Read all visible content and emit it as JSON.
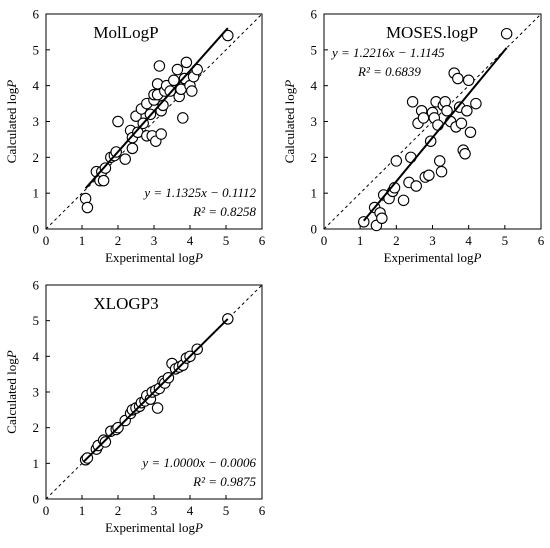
{
  "chart_data": [
    {
      "type": "scatter",
      "title": "MolLogP",
      "xlabel": "Experimental logP",
      "ylabel": "Calculated logP",
      "xlim": [
        0,
        6
      ],
      "ylim": [
        0,
        6
      ],
      "xticks": [
        "0",
        "1",
        "2",
        "3",
        "4",
        "5",
        "6"
      ],
      "yticks": [
        "0",
        "1",
        "2",
        "3",
        "4",
        "5",
        "6"
      ],
      "equation": "y = 1.1325x − 0.1112",
      "r2": "R² = 0.8258",
      "annotation_position": "bottom-right",
      "fit": {
        "slope": 1.1325,
        "intercept": -0.1112,
        "x_range": [
          1.1,
          5.05
        ]
      },
      "identity_line": true,
      "points": [
        [
          1.1,
          0.85
        ],
        [
          1.15,
          0.6
        ],
        [
          1.4,
          1.6
        ],
        [
          1.5,
          1.35
        ],
        [
          1.55,
          1.6
        ],
        [
          1.6,
          1.35
        ],
        [
          1.65,
          1.7
        ],
        [
          1.8,
          2.0
        ],
        [
          1.9,
          2.05
        ],
        [
          1.95,
          2.15
        ],
        [
          2.0,
          3.0
        ],
        [
          2.2,
          1.95
        ],
        [
          2.35,
          2.75
        ],
        [
          2.4,
          2.25
        ],
        [
          2.4,
          2.55
        ],
        [
          2.5,
          3.15
        ],
        [
          2.55,
          2.7
        ],
        [
          2.65,
          3.35
        ],
        [
          2.7,
          2.95
        ],
        [
          2.8,
          3.5
        ],
        [
          2.8,
          2.6
        ],
        [
          2.9,
          3.2
        ],
        [
          2.95,
          2.6
        ],
        [
          3.0,
          3.6
        ],
        [
          3.0,
          3.75
        ],
        [
          3.05,
          2.45
        ],
        [
          3.1,
          4.05
        ],
        [
          3.1,
          3.75
        ],
        [
          3.15,
          4.55
        ],
        [
          3.2,
          2.65
        ],
        [
          3.2,
          3.3
        ],
        [
          3.25,
          3.45
        ],
        [
          3.3,
          3.85
        ],
        [
          3.35,
          4.0
        ],
        [
          3.45,
          3.85
        ],
        [
          3.55,
          4.15
        ],
        [
          3.65,
          4.45
        ],
        [
          3.7,
          3.7
        ],
        [
          3.75,
          3.9
        ],
        [
          3.8,
          3.1
        ],
        [
          3.85,
          4.2
        ],
        [
          3.9,
          4.65
        ],
        [
          4.0,
          4.0
        ],
        [
          4.05,
          3.85
        ],
        [
          4.1,
          4.25
        ],
        [
          4.2,
          4.45
        ],
        [
          5.05,
          5.4
        ]
      ]
    },
    {
      "type": "scatter",
      "title": "MOSES.logP",
      "xlabel": "Experimental logP",
      "ylabel": "Calculated logP",
      "xlim": [
        0,
        6
      ],
      "ylim": [
        0,
        6
      ],
      "xticks": [
        "0",
        "1",
        "2",
        "3",
        "4",
        "5",
        "6"
      ],
      "yticks": [
        "0",
        "1",
        "2",
        "3",
        "4",
        "5",
        "6"
      ],
      "equation": "y = 1.2216x − 1.1145",
      "r2": "R² = 0.6839",
      "annotation_position": "top-left",
      "fit": {
        "slope": 1.2216,
        "intercept": -1.1145,
        "x_range": [
          1.1,
          5.05
        ]
      },
      "identity_line": true,
      "points": [
        [
          1.1,
          0.2
        ],
        [
          1.4,
          0.6
        ],
        [
          1.45,
          0.1
        ],
        [
          1.55,
          0.45
        ],
        [
          1.6,
          0.3
        ],
        [
          1.65,
          0.95
        ],
        [
          1.8,
          0.85
        ],
        [
          1.9,
          1.05
        ],
        [
          1.95,
          1.15
        ],
        [
          2.0,
          1.9
        ],
        [
          2.2,
          0.8
        ],
        [
          2.35,
          1.3
        ],
        [
          2.4,
          2.0
        ],
        [
          2.45,
          3.55
        ],
        [
          2.55,
          1.2
        ],
        [
          2.6,
          2.95
        ],
        [
          2.7,
          3.3
        ],
        [
          2.75,
          3.1
        ],
        [
          2.8,
          1.45
        ],
        [
          2.9,
          1.5
        ],
        [
          2.95,
          2.45
        ],
        [
          3.0,
          3.25
        ],
        [
          3.05,
          3.1
        ],
        [
          3.1,
          3.55
        ],
        [
          3.15,
          2.9
        ],
        [
          3.2,
          1.9
        ],
        [
          3.25,
          1.6
        ],
        [
          3.3,
          3.45
        ],
        [
          3.35,
          3.55
        ],
        [
          3.4,
          3.3
        ],
        [
          3.5,
          3.0
        ],
        [
          3.6,
          4.35
        ],
        [
          3.65,
          2.85
        ],
        [
          3.7,
          4.2
        ],
        [
          3.75,
          3.4
        ],
        [
          3.8,
          2.95
        ],
        [
          3.85,
          2.2
        ],
        [
          3.9,
          2.1
        ],
        [
          3.95,
          3.3
        ],
        [
          4.0,
          4.15
        ],
        [
          4.05,
          2.7
        ],
        [
          4.2,
          3.5
        ],
        [
          5.05,
          5.45
        ]
      ]
    },
    {
      "type": "scatter",
      "title": "XLOGP3",
      "xlabel": "Experimental logP",
      "ylabel": "Calculated logP",
      "xlim": [
        0,
        6
      ],
      "ylim": [
        0,
        6
      ],
      "xticks": [
        "0",
        "1",
        "2",
        "3",
        "4",
        "5",
        "6"
      ],
      "yticks": [
        "0",
        "1",
        "2",
        "3",
        "4",
        "5",
        "6"
      ],
      "equation": "y = 1.0000x − 0.0006",
      "r2": "R² = 0.9875",
      "annotation_position": "bottom-right",
      "fit": {
        "slope": 1.0,
        "intercept": -0.0006,
        "x_range": [
          1.05,
          5.05
        ]
      },
      "identity_line": true,
      "points": [
        [
          1.1,
          1.1
        ],
        [
          1.15,
          1.15
        ],
        [
          1.4,
          1.4
        ],
        [
          1.45,
          1.5
        ],
        [
          1.6,
          1.65
        ],
        [
          1.65,
          1.6
        ],
        [
          1.8,
          1.9
        ],
        [
          1.95,
          1.95
        ],
        [
          2.0,
          2.0
        ],
        [
          2.2,
          2.2
        ],
        [
          2.35,
          2.4
        ],
        [
          2.4,
          2.5
        ],
        [
          2.5,
          2.55
        ],
        [
          2.6,
          2.6
        ],
        [
          2.65,
          2.7
        ],
        [
          2.75,
          2.75
        ],
        [
          2.8,
          2.9
        ],
        [
          2.9,
          2.8
        ],
        [
          2.95,
          3.0
        ],
        [
          3.05,
          3.05
        ],
        [
          3.1,
          2.55
        ],
        [
          3.15,
          3.1
        ],
        [
          3.25,
          3.3
        ],
        [
          3.3,
          3.25
        ],
        [
          3.4,
          3.4
        ],
        [
          3.5,
          3.8
        ],
        [
          3.6,
          3.65
        ],
        [
          3.7,
          3.7
        ],
        [
          3.8,
          3.75
        ],
        [
          3.9,
          3.95
        ],
        [
          4.0,
          4.0
        ],
        [
          4.2,
          4.2
        ],
        [
          5.05,
          5.05
        ]
      ]
    }
  ]
}
